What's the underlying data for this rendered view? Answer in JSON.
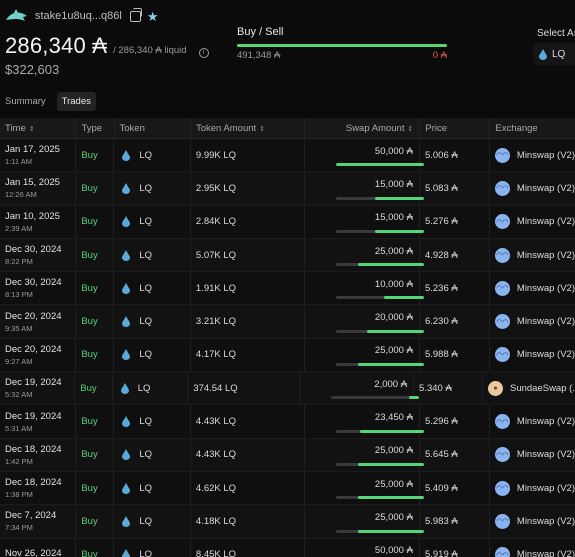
{
  "account": {
    "address": "stake1u8uq...q86l",
    "balance": "286,340 ₳",
    "liquid": "/ 286,340 ₳ liquid",
    "usd": "$322,603"
  },
  "buy_sell": {
    "title": "Buy / Sell",
    "buy": "491,348 ₳",
    "sell": "0 ₳",
    "buy_fraction": 1.0
  },
  "select_asset": {
    "label": "Select As",
    "value": "LQ"
  },
  "tabs": [
    {
      "label": "Summary",
      "active": false
    },
    {
      "label": "Trades",
      "active": true
    }
  ],
  "columns": [
    "Time",
    "Type",
    "Token",
    "Token Amount",
    "Swap Amount",
    "Price",
    "Exchange"
  ],
  "colors": {
    "accent_green": "#57d37a",
    "sell_red": "#e05d5d"
  },
  "rows": [
    {
      "date": "Jan 17, 2025",
      "time": "1:11 AM",
      "type": "Buy",
      "token": "LQ",
      "amount": "9.99K LQ",
      "swap": "50,000 ₳",
      "swap_fraction": 1.0,
      "price": "5.006 ₳",
      "exchange": "Minswap (V2)",
      "ex_icon": "minswap-icon"
    },
    {
      "date": "Jan 15, 2025",
      "time": "12:26 AM",
      "type": "Buy",
      "token": "LQ",
      "amount": "2.95K LQ",
      "swap": "15,000 ₳",
      "swap_fraction": 0.55,
      "price": "5.083 ₳",
      "exchange": "Minswap (V2)",
      "ex_icon": "minswap-icon"
    },
    {
      "date": "Jan 10, 2025",
      "time": "2:39 AM",
      "type": "Buy",
      "token": "LQ",
      "amount": "2.84K LQ",
      "swap": "15,000 ₳",
      "swap_fraction": 0.55,
      "price": "5.276 ₳",
      "exchange": "Minswap (V2)",
      "ex_icon": "minswap-icon"
    },
    {
      "date": "Dec 30, 2024",
      "time": "8:22 PM",
      "type": "Buy",
      "token": "LQ",
      "amount": "5.07K LQ",
      "swap": "25,000 ₳",
      "swap_fraction": 0.75,
      "price": "4.928 ₳",
      "exchange": "Minswap (V2)",
      "ex_icon": "minswap-icon"
    },
    {
      "date": "Dec 30, 2024",
      "time": "8:13 PM",
      "type": "Buy",
      "token": "LQ",
      "amount": "1.91K LQ",
      "swap": "10,000 ₳",
      "swap_fraction": 0.45,
      "price": "5.236 ₳",
      "exchange": "Minswap (V2)",
      "ex_icon": "minswap-icon"
    },
    {
      "date": "Dec 20, 2024",
      "time": "9:35 AM",
      "type": "Buy",
      "token": "LQ",
      "amount": "3.21K LQ",
      "swap": "20,000 ₳",
      "swap_fraction": 0.65,
      "price": "6.230 ₳",
      "exchange": "Minswap (V2)",
      "ex_icon": "minswap-icon"
    },
    {
      "date": "Dec 20, 2024",
      "time": "9:27 AM",
      "type": "Buy",
      "token": "LQ",
      "amount": "4.17K LQ",
      "swap": "25,000 ₳",
      "swap_fraction": 0.75,
      "price": "5.988 ₳",
      "exchange": "Minswap (V2)",
      "ex_icon": "minswap-icon"
    },
    {
      "date": "Dec 19, 2024",
      "time": "5:32 AM",
      "type": "Buy",
      "token": "LQ",
      "amount": "374.54 LQ",
      "swap": "2,000 ₳",
      "swap_fraction": 0.12,
      "price": "5.340 ₳",
      "exchange": "SundaeSwap (...",
      "ex_icon": "sundaeswap-icon"
    },
    {
      "date": "Dec 19, 2024",
      "time": "5:31 AM",
      "type": "Buy",
      "token": "LQ",
      "amount": "4.43K LQ",
      "swap": "23,450 ₳",
      "swap_fraction": 0.72,
      "price": "5.296 ₳",
      "exchange": "Minswap (V2)",
      "ex_icon": "minswap-icon"
    },
    {
      "date": "Dec 18, 2024",
      "time": "1:42 PM",
      "type": "Buy",
      "token": "LQ",
      "amount": "4.43K LQ",
      "swap": "25,000 ₳",
      "swap_fraction": 0.75,
      "price": "5.645 ₳",
      "exchange": "Minswap (V2)",
      "ex_icon": "minswap-icon"
    },
    {
      "date": "Dec 18, 2024",
      "time": "1:38 PM",
      "type": "Buy",
      "token": "LQ",
      "amount": "4.62K LQ",
      "swap": "25,000 ₳",
      "swap_fraction": 0.75,
      "price": "5.409 ₳",
      "exchange": "Minswap (V2)",
      "ex_icon": "minswap-icon"
    },
    {
      "date": "Dec 7, 2024",
      "time": "7:34 PM",
      "type": "Buy",
      "token": "LQ",
      "amount": "4.18K LQ",
      "swap": "25,000 ₳",
      "swap_fraction": 0.75,
      "price": "5.983 ₳",
      "exchange": "Minswap (V2)",
      "ex_icon": "minswap-icon"
    },
    {
      "date": "Nov 26, 2024",
      "time": "",
      "type": "Buy",
      "token": "LQ",
      "amount": "8.45K LQ",
      "swap": "50,000 ₳",
      "swap_fraction": 1.0,
      "price": "5.919 ₳",
      "exchange": "Minswap (V2)",
      "ex_icon": "minswap-icon"
    }
  ]
}
